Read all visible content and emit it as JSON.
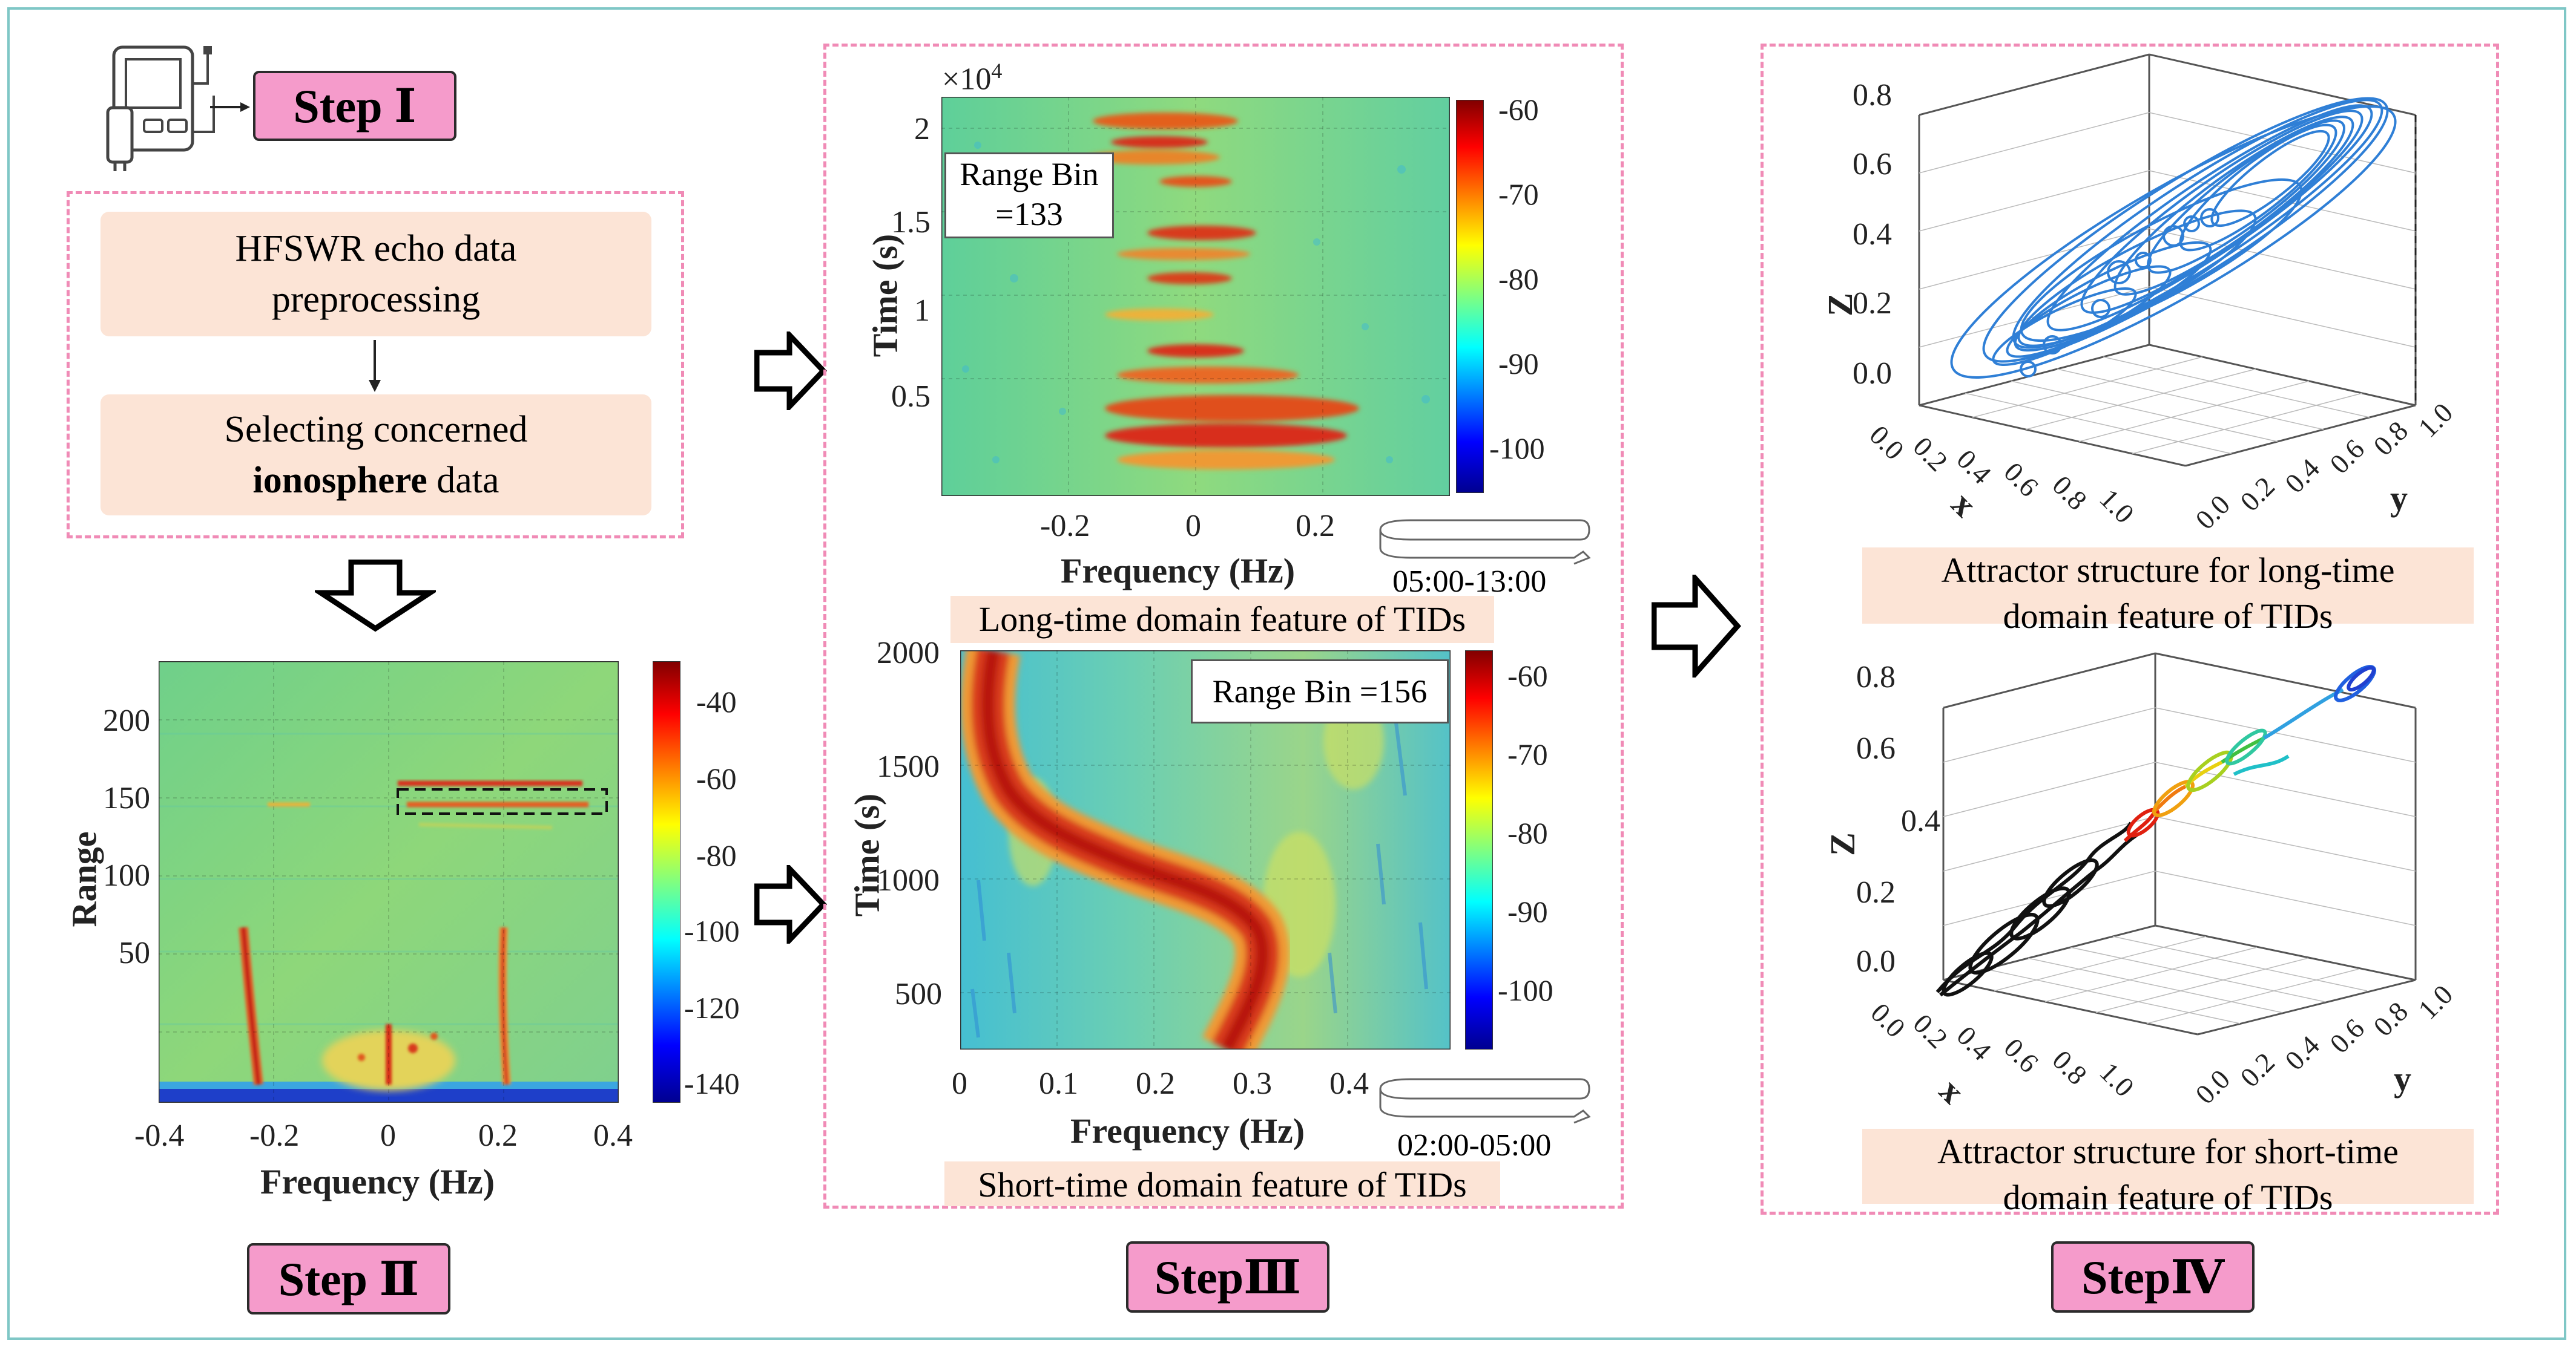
{
  "steps": {
    "step1": "Step Ⅰ",
    "step2": "Step Ⅱ",
    "step3": "StepⅢ",
    "step4": "StepⅣ"
  },
  "preprocess": {
    "box1_line1": "HFSWR echo data",
    "box1_line2": "preprocessing",
    "box2_line1": "Selecting concerned",
    "box2_bold": "ionosphere",
    "box2_rest": " data"
  },
  "rd_map": {
    "ylabel": "Range",
    "xlabel": "Frequency (Hz)",
    "yticks": [
      "200",
      "150",
      "100",
      "50"
    ],
    "xticks": [
      "-0.4",
      "-0.2",
      "0",
      "0.2",
      "0.4"
    ],
    "cbticks": [
      "-40",
      "-60",
      "-80",
      "-100",
      "-120",
      "-140"
    ]
  },
  "long_spec": {
    "exponent": "×10",
    "exponent_power": "4",
    "ylabel": "Time (s)",
    "xlabel": "Frequency (Hz)",
    "yticks": [
      "2",
      "1.5",
      "1",
      "0.5"
    ],
    "xticks": [
      "-0.2",
      "0",
      "0.2"
    ],
    "cbticks": [
      "-60",
      "-70",
      "-80",
      "-90",
      "-100"
    ],
    "range_bin_line1": "Range Bin",
    "range_bin_line2": "=133",
    "time_window": "05:00-13:00",
    "caption": "Long-time domain feature of TIDs"
  },
  "short_spec": {
    "ylabel": "Time (s)",
    "xlabel": "Frequency (Hz)",
    "yticks": [
      "2000",
      "1500",
      "1000",
      "500"
    ],
    "xticks": [
      "0",
      "0.1",
      "0.2",
      "0.3",
      "0.4"
    ],
    "cbticks": [
      "-60",
      "-70",
      "-80",
      "-90",
      "-100"
    ],
    "range_bin": "Range Bin =156",
    "time_window": "02:00-05:00",
    "caption": "Short-time domain feature of TIDs"
  },
  "attractor_long": {
    "zlabel": "Z",
    "xlabel": "x",
    "ylabel": "y",
    "zticks": [
      "0.8",
      "0.6",
      "0.4",
      "0.2",
      "0.0"
    ],
    "xticks": [
      "0.0",
      "0.2",
      "0.4",
      "0.6",
      "0.8",
      "1.0"
    ],
    "yticks": [
      "0.0",
      "0.2",
      "0.4",
      "0.6",
      "0.8",
      "1.0"
    ],
    "caption_line1": "Attractor structure for long-time",
    "caption_line2": "domain feature of TIDs",
    "line_color": "#2f7fd6"
  },
  "attractor_short": {
    "zlabel": "Z",
    "xlabel": "x",
    "ylabel": "y",
    "zticks": [
      "0.8",
      "0.6",
      "0.4",
      "0.2",
      "0.0"
    ],
    "xticks": [
      "0.0",
      "0.2",
      "0.4",
      "0.6",
      "0.8",
      "1.0"
    ],
    "yticks": [
      "0.0",
      "0.2",
      "0.4",
      "0.6",
      "0.8",
      "1.0"
    ],
    "caption_line1": "Attractor structure for short-time",
    "caption_line2": "domain feature of TIDs"
  },
  "colors": {
    "badge": "#f59bcb",
    "dash": "#f08bb6",
    "peach": "#fce4d6",
    "frame": "#7fc7c6"
  }
}
